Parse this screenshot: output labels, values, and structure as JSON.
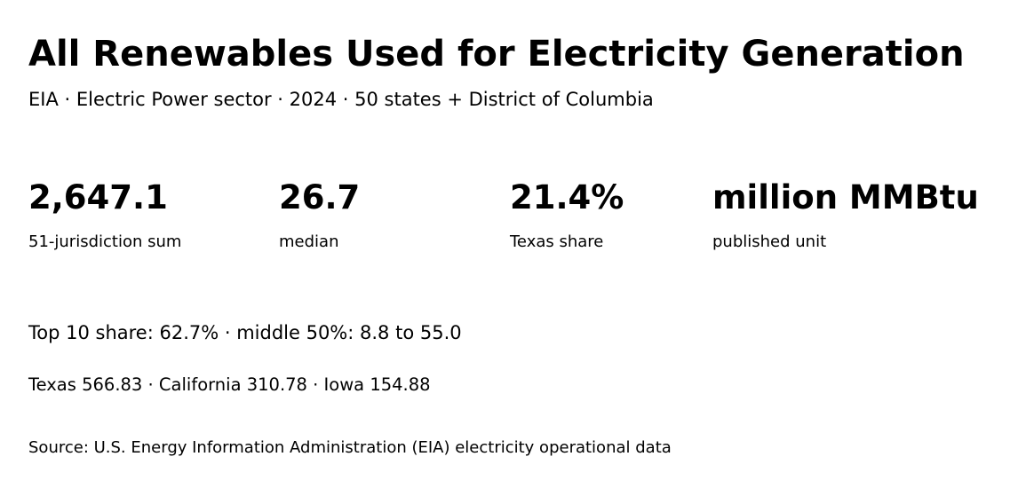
{
  "header": {
    "title": "All Renewables Used for Electricity Generation",
    "subtitle": "EIA · Electric Power sector · 2024 · 50 states + District of Columbia"
  },
  "stats": [
    {
      "value": "2,647.1",
      "label": "51-jurisdiction sum"
    },
    {
      "value": "26.7",
      "label": "median"
    },
    {
      "value": "21.4%",
      "label": "Texas share"
    },
    {
      "value": "million MMBtu",
      "label": "published unit"
    }
  ],
  "summary": {
    "distribution": "Top 10 share: 62.7% · middle 50%: 8.8 to 55.0",
    "leaders": "Texas 566.83 · California 310.78 · Iowa 154.88"
  },
  "footer": {
    "source": "Source: U.S. Energy Information Administration (EIA) electricity operational data"
  }
}
